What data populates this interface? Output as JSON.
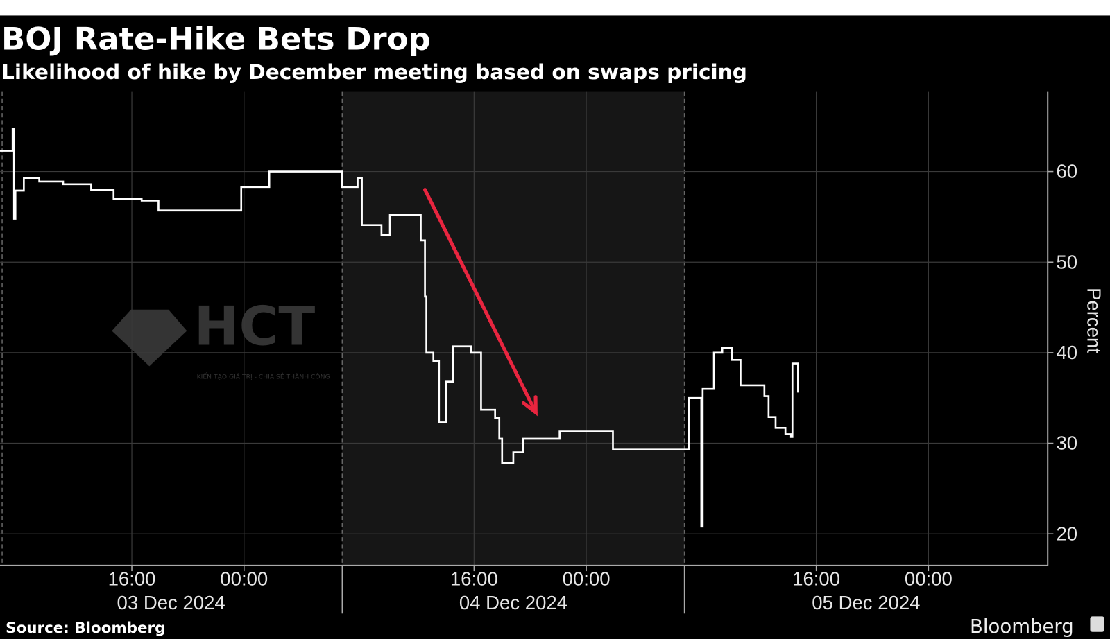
{
  "chart_data": {
    "type": "line",
    "title": "BOJ Rate-Hike Bets Drop",
    "subtitle": "Likelihood of hike by December meeting based on swaps pricing",
    "ylabel": "Percent",
    "xlabel": "",
    "x_unit": "hours relative to 00:00, 04 Dec 2024",
    "ylim": [
      16.5,
      68.8
    ],
    "xlim": [
      -17.4,
      57.3
    ],
    "y_ticks": [
      20,
      30,
      40,
      50,
      60
    ],
    "x_ticks": [
      {
        "x": -8,
        "label": "16:00"
      },
      {
        "x": 0,
        "label": "00:00"
      },
      {
        "x": 16.4,
        "label": "16:00"
      },
      {
        "x": 24.4,
        "label": "00:00"
      },
      {
        "x": 40.8,
        "label": "16:00"
      },
      {
        "x": 48.8,
        "label": "00:00"
      }
    ],
    "sessions": [
      {
        "label": "03 Dec 2024",
        "start": -17.4,
        "end": 7.0,
        "shaded": false
      },
      {
        "label": "04 Dec 2024",
        "start": 7.0,
        "end": 31.4,
        "shaded": true
      },
      {
        "label": "05 Dec 2024",
        "start": 31.4,
        "end": 57.3,
        "shaded": false
      }
    ],
    "grid": true,
    "series": [
      {
        "name": "Likelihood of hike",
        "step": true,
        "x": [
          -17.4,
          -16.5,
          -16.4,
          -16.3,
          -16.2,
          -15.7,
          -14.6,
          -12.9,
          -10.9,
          -9.3,
          -7.3,
          -6.1,
          -0.2,
          1.8,
          7.0,
          8.1,
          8.4,
          9.8,
          10.4,
          12.4,
          12.6,
          12.9,
          13.0,
          13.5,
          13.9,
          14.4,
          14.9,
          16.2,
          16.9,
          17.9,
          18.2,
          18.4,
          19.2,
          19.9,
          22.5,
          26.3,
          31.7,
          32.6,
          32.7,
          32.8,
          33.5,
          34.1,
          34.8,
          35.4,
          37.1,
          37.4,
          37.9,
          38.6,
          39.0,
          39.1,
          39.5
        ],
        "y": [
          62.3,
          64.7,
          54.8,
          57.9,
          57.9,
          59.3,
          58.9,
          58.6,
          58.0,
          57.0,
          56.8,
          55.7,
          58.3,
          60.0,
          58.3,
          59.3,
          54.1,
          53.0,
          55.2,
          55.2,
          52.4,
          46.2,
          40.0,
          39.1,
          32.3,
          36.8,
          40.7,
          40.0,
          33.7,
          32.8,
          30.5,
          27.8,
          29.0,
          30.5,
          31.3,
          29.3,
          35.0,
          20.8,
          36.0,
          36.0,
          40.0,
          40.5,
          39.2,
          36.4,
          35.2,
          32.9,
          31.7,
          31.0,
          30.7,
          38.8,
          35.6
        ]
      }
    ],
    "annotations": [
      {
        "type": "arrow",
        "color": "#e8253f",
        "from": [
          12.9,
          58.0
        ],
        "to": [
          20.8,
          33.4
        ]
      }
    ]
  },
  "footer": {
    "source": "Source: Bloomberg",
    "brand": "Bloomberg"
  },
  "watermark": {
    "text": "HCT",
    "tagline": "KIẾN TẠO GIÁ TRỊ - CHIA SẺ THÀNH CÔNG"
  },
  "colors": {
    "background": "#000000",
    "shaded": "#161616",
    "line": "#ffffff",
    "grid": "#3a3a3a",
    "arrow": "#e8253f"
  }
}
